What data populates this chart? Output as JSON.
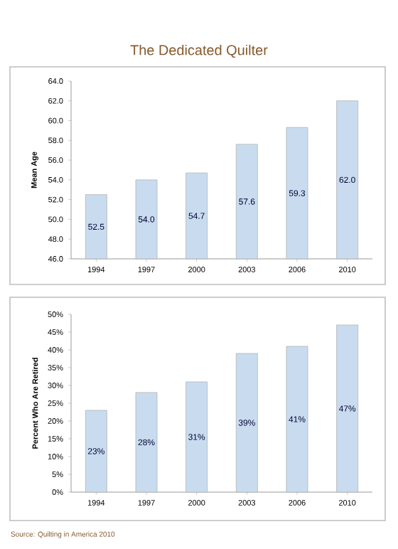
{
  "chart_data": [
    {
      "type": "bar",
      "title": "The Dedicated Quilter",
      "ylabel": "Mean Age",
      "categories": [
        "1994",
        "1997",
        "2000",
        "2003",
        "2006",
        "2010"
      ],
      "values": [
        52.5,
        54.0,
        54.7,
        57.6,
        59.3,
        62.0
      ],
      "value_labels": [
        "52.5",
        "54.0",
        "54.7",
        "57.6",
        "59.3",
        "62.0"
      ],
      "color": "#c9dcef",
      "ylim": [
        46,
        64
      ],
      "yticks": [
        {
          "value": 46,
          "label": "46.0"
        },
        {
          "value": 48,
          "label": "48.0"
        },
        {
          "value": 50,
          "label": "50.0"
        },
        {
          "value": 52,
          "label": "52.0"
        },
        {
          "value": 54,
          "label": "54.0"
        },
        {
          "value": 56,
          "label": "56.0"
        },
        {
          "value": 58,
          "label": "58.0"
        },
        {
          "value": 60,
          "label": "60.0"
        },
        {
          "value": 62,
          "label": "62.0"
        },
        {
          "value": 64,
          "label": "64.0"
        }
      ]
    },
    {
      "type": "bar",
      "ylabel": "Percent Who Are Retired",
      "categories": [
        "1994",
        "1997",
        "2000",
        "2003",
        "2006",
        "2010"
      ],
      "values": [
        23,
        28,
        31,
        39,
        41,
        47
      ],
      "value_labels": [
        "23%",
        "28%",
        "31%",
        "39%",
        "41%",
        "47%"
      ],
      "color": "#c9dcef",
      "ylim": [
        0,
        50
      ],
      "yticks": [
        {
          "value": 0,
          "label": "0%"
        },
        {
          "value": 5,
          "label": "5%"
        },
        {
          "value": 10,
          "label": "10%"
        },
        {
          "value": 15,
          "label": "15%"
        },
        {
          "value": 20,
          "label": "20%"
        },
        {
          "value": 25,
          "label": "25%"
        },
        {
          "value": 30,
          "label": "30%"
        },
        {
          "value": 35,
          "label": "35%"
        },
        {
          "value": 40,
          "label": "40%"
        },
        {
          "value": 45,
          "label": "45%"
        },
        {
          "value": 50,
          "label": "50%"
        }
      ],
      "annotations": [
        "Source: Quilting in America 2010"
      ]
    }
  ]
}
